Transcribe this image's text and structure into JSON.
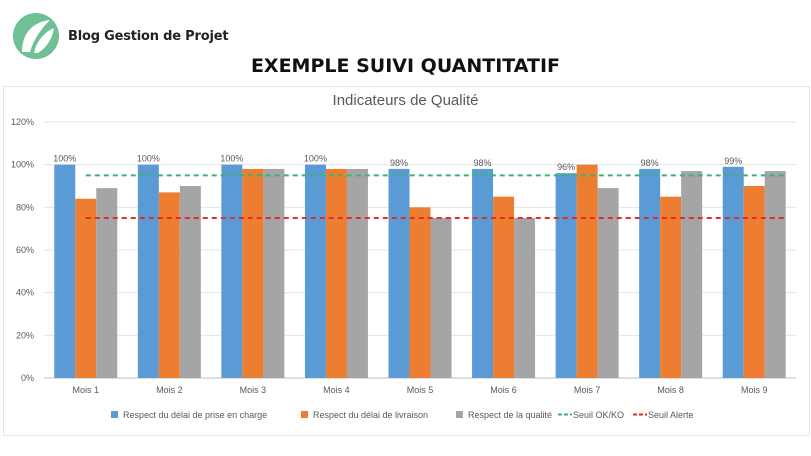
{
  "brand": {
    "name": "Blog Gestion de Projet",
    "logo_icon": "leaf-logo-icon",
    "logo_color": "#6fbf97"
  },
  "page_title": "EXEMPLE SUIVI QUANTITATIF",
  "chart_data": {
    "type": "bar",
    "title": "Indicateurs de Qualité",
    "xlabel": "",
    "ylabel": "",
    "categories": [
      "Mois 1",
      "Mois 2",
      "Mois 3",
      "Mois 4",
      "Mois 5",
      "Mois 6",
      "Mois 7",
      "Mois 8",
      "Mois 9"
    ],
    "ylim": [
      0,
      120
    ],
    "yticks": [
      "0%",
      "20%",
      "40%",
      "60%",
      "80%",
      "100%",
      "120%"
    ],
    "grid": true,
    "legend_position": "bottom",
    "series": [
      {
        "name": "Respect du délai de prise en charge",
        "type": "bar",
        "color": "#5b9bd5",
        "values": [
          100,
          100,
          100,
          100,
          98,
          98,
          96,
          98,
          99
        ],
        "labels": [
          "100%",
          "100%",
          "100%",
          "100%",
          "98%",
          "98%",
          "96%",
          "98%",
          "99%"
        ]
      },
      {
        "name": "Respect du délai de livraison",
        "type": "bar",
        "color": "#ed7d31",
        "values": [
          84,
          87,
          98,
          98,
          80,
          85,
          100,
          85,
          90
        ]
      },
      {
        "name": "Respect de la qualité",
        "type": "bar",
        "color": "#a5a5a5",
        "values": [
          89,
          90,
          98,
          98,
          75,
          75,
          89,
          97,
          97
        ]
      },
      {
        "name": "Seuil OK/KO",
        "type": "dashed-line",
        "color": "#3cb371",
        "value": 95
      },
      {
        "name": "Seuil Alerte",
        "type": "dashed-line",
        "color": "#e8282b",
        "value": 75
      }
    ]
  }
}
